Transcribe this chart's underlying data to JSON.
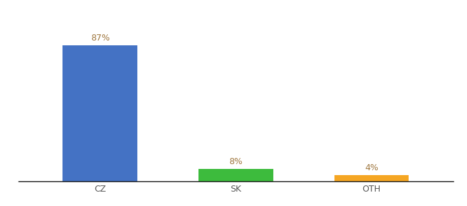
{
  "categories": [
    "CZ",
    "SK",
    "OTH"
  ],
  "values": [
    87,
    8,
    4
  ],
  "bar_colors": [
    "#4472c4",
    "#3dbb3d",
    "#f5a623"
  ],
  "label_color": "#a07840",
  "bar_width": 0.55,
  "x_positions": [
    0.18,
    0.5,
    0.78
  ],
  "ylim": [
    0,
    100
  ],
  "background_color": "#ffffff",
  "label_fontsize": 9,
  "tick_fontsize": 9,
  "title_fontsize": 9
}
